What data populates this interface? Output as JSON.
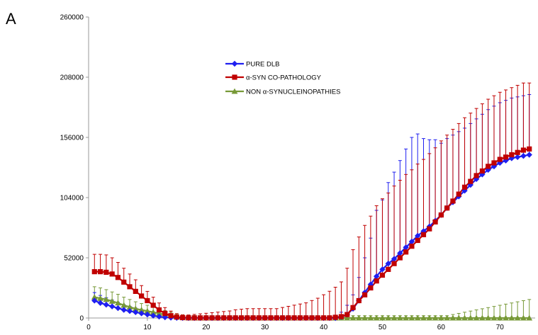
{
  "panel_label": "A",
  "colors": {
    "pure_dlb": "#1f1ff0",
    "asyn_copathology": "#c00000",
    "non_asyn": "#779937",
    "axis": "#999999"
  },
  "chart_data": {
    "type": "line",
    "title": "",
    "xlabel": "",
    "ylabel": "",
    "xlim": [
      0,
      76
    ],
    "ylim": [
      0,
      260000
    ],
    "grid": false,
    "legend_position": "upper-middle",
    "xticks": [
      0,
      10,
      20,
      30,
      40,
      50,
      60,
      70
    ],
    "xtick_labels": [
      "0",
      "10",
      "20",
      "30",
      "40",
      "50",
      "60",
      "70"
    ],
    "yticks": [
      0,
      52000,
      104000,
      156000,
      208000,
      260000
    ],
    "ytick_labels": [
      "0",
      "52000",
      "104000",
      "156000",
      "208000",
      "260000"
    ],
    "x": [
      1,
      2,
      3,
      4,
      5,
      6,
      7,
      8,
      9,
      10,
      11,
      12,
      13,
      14,
      15,
      16,
      17,
      18,
      19,
      20,
      21,
      22,
      23,
      24,
      25,
      26,
      27,
      28,
      29,
      30,
      31,
      32,
      33,
      34,
      35,
      36,
      37,
      38,
      39,
      40,
      41,
      42,
      43,
      44,
      45,
      46,
      47,
      48,
      49,
      50,
      51,
      52,
      53,
      54,
      55,
      56,
      57,
      58,
      59,
      60,
      61,
      62,
      63,
      64,
      65,
      66,
      67,
      68,
      69,
      70,
      71,
      72,
      73,
      74,
      75
    ],
    "series": [
      {
        "name": "PURE DLB",
        "marker": "diamond",
        "values": [
          15000,
          13000,
          11500,
          10000,
          8500,
          7000,
          6000,
          5000,
          4000,
          3000,
          2000,
          1200,
          600,
          300,
          100,
          50,
          0,
          0,
          0,
          0,
          0,
          0,
          0,
          0,
          0,
          0,
          0,
          0,
          0,
          0,
          0,
          0,
          0,
          0,
          0,
          0,
          0,
          0,
          0,
          0,
          0,
          0,
          1000,
          3000,
          8000,
          15000,
          22000,
          29000,
          36000,
          42000,
          47000,
          51000,
          56000,
          61000,
          66000,
          71000,
          75000,
          79000,
          84000,
          89000,
          95000,
          100000,
          105000,
          110000,
          115000,
          120000,
          124000,
          128000,
          131000,
          134000,
          136000,
          138000,
          139000,
          140000,
          141000
        ],
        "errors": [
          7000,
          6500,
          6000,
          5500,
          5000,
          4500,
          4000,
          3500,
          3000,
          2600,
          2200,
          1800,
          1400,
          1000,
          800,
          600,
          500,
          500,
          500,
          500,
          500,
          500,
          500,
          500,
          500,
          500,
          500,
          500,
          500,
          500,
          500,
          500,
          500,
          500,
          500,
          500,
          500,
          500,
          500,
          500,
          1500,
          2500,
          4000,
          8000,
          12000,
          20000,
          30000,
          40000,
          57000,
          60000,
          70000,
          75000,
          80000,
          85000,
          90000,
          88000,
          80000,
          75000,
          70000,
          62000,
          60000,
          58000,
          56000,
          54000,
          53000,
          52000,
          52000,
          52000,
          52000,
          52000,
          52000,
          52000,
          52000,
          52000,
          52000
        ]
      },
      {
        "name": "α-SYN CO-PATHOLOGY",
        "marker": "square",
        "values": [
          40000,
          40000,
          39500,
          38000,
          35000,
          31000,
          27000,
          23000,
          19000,
          15000,
          11000,
          7000,
          4000,
          2000,
          800,
          300,
          150,
          100,
          100,
          100,
          100,
          100,
          100,
          100,
          100,
          100,
          100,
          100,
          100,
          100,
          100,
          100,
          100,
          100,
          100,
          100,
          100,
          100,
          100,
          100,
          100,
          600,
          1200,
          3000,
          9000,
          15000,
          20000,
          26000,
          32000,
          37000,
          42000,
          47000,
          52000,
          57000,
          62000,
          67000,
          72000,
          77000,
          83000,
          89000,
          95000,
          101000,
          107000,
          113000,
          118000,
          123000,
          127000,
          131000,
          134000,
          137000,
          139000,
          141000,
          143000,
          145000,
          146000
        ],
        "errors": [
          15000,
          15000,
          15000,
          14000,
          13000,
          12000,
          11000,
          10000,
          9000,
          8000,
          7000,
          6000,
          5000,
          4000,
          3000,
          2500,
          2500,
          3000,
          3500,
          4000,
          4500,
          5000,
          5500,
          6000,
          7000,
          7500,
          8000,
          8000,
          8000,
          8000,
          8000,
          8000,
          9000,
          10000,
          11000,
          12000,
          13000,
          15000,
          17000,
          20000,
          23000,
          26000,
          30000,
          40000,
          50000,
          55000,
          60000,
          62000,
          65000,
          66000,
          66000,
          67000,
          67000,
          67000,
          66000,
          66000,
          65000,
          65000,
          64000,
          64000,
          63000,
          62000,
          61000,
          60000,
          59000,
          58000,
          58000,
          58000,
          58000,
          58000,
          58000,
          58000,
          58000,
          58000,
          57000
        ]
      },
      {
        "name": "NON α-SYNUCLEINOPATHIES",
        "marker": "triangle",
        "values": [
          18000,
          17000,
          16000,
          14500,
          13000,
          11000,
          9500,
          8000,
          7000,
          6000,
          5000,
          4000,
          3000,
          2000,
          1000,
          500,
          200,
          100,
          0,
          0,
          0,
          0,
          0,
          0,
          0,
          0,
          0,
          0,
          0,
          0,
          0,
          0,
          0,
          0,
          0,
          0,
          0,
          0,
          0,
          0,
          0,
          0,
          0,
          0,
          0,
          0,
          0,
          0,
          0,
          0,
          0,
          0,
          0,
          0,
          0,
          0,
          0,
          0,
          0,
          0,
          0,
          0,
          0,
          0,
          0,
          0,
          0,
          0,
          0,
          0,
          0,
          0,
          0,
          0,
          0
        ],
        "errors": [
          9000,
          9000,
          8500,
          8000,
          7500,
          7000,
          6500,
          6000,
          5500,
          5000,
          4500,
          4000,
          3500,
          3000,
          2500,
          2000,
          2000,
          2000,
          2000,
          2000,
          2000,
          2000,
          2000,
          2000,
          2000,
          2000,
          2000,
          2000,
          2000,
          2000,
          2000,
          2000,
          2000,
          2000,
          2000,
          2000,
          2000,
          2000,
          2000,
          2000,
          2000,
          2000,
          2000,
          2000,
          2000,
          2000,
          2000,
          2000,
          2000,
          2000,
          2000,
          2000,
          2000,
          2000,
          2000,
          2000,
          2000,
          2000,
          2000,
          2000,
          2000,
          3000,
          4000,
          5000,
          6000,
          7000,
          8000,
          9000,
          10000,
          11000,
          12000,
          13000,
          14000,
          15000,
          16000
        ]
      }
    ]
  }
}
